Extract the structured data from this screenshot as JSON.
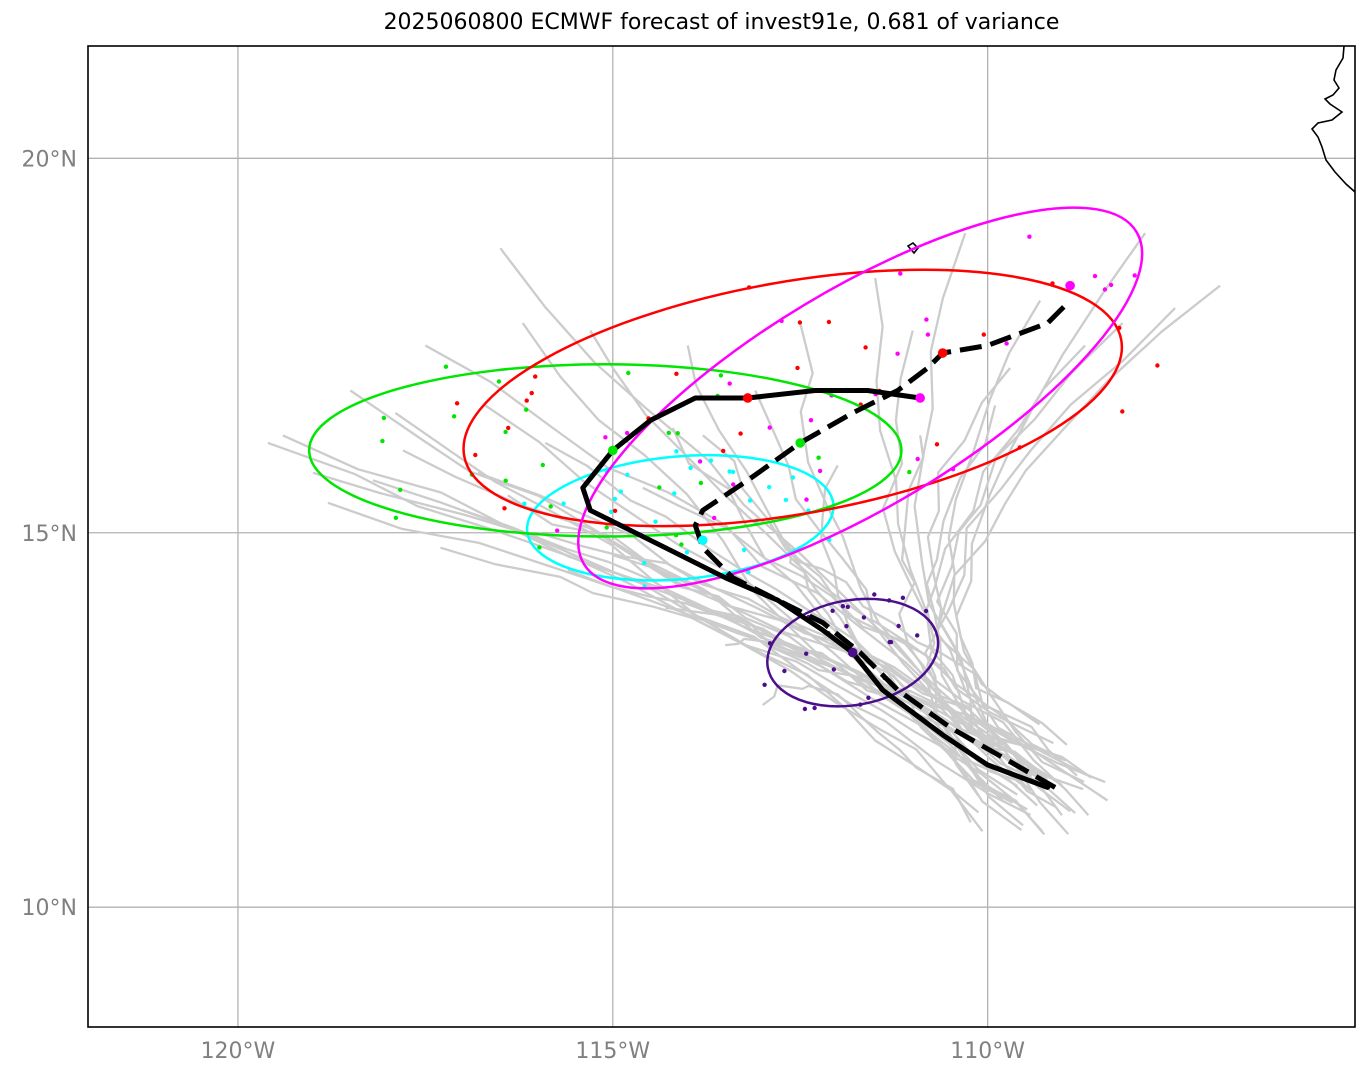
{
  "title": "2025060800 ECMWF forecast of invest91e, 0.681 of variance",
  "axes": {
    "lon_range": [
      -122.0,
      -105.1
    ],
    "lat_range": [
      8.4,
      21.5
    ],
    "lon_ticks": [
      {
        "value": -120,
        "label": "120°W"
      },
      {
        "value": -115,
        "label": "115°W"
      },
      {
        "value": -110,
        "label": "110°W"
      }
    ],
    "lat_ticks": [
      {
        "value": 20,
        "label": "20°N"
      },
      {
        "value": 15,
        "label": "15°N"
      },
      {
        "value": 10,
        "label": "10°N"
      }
    ],
    "gridlines": true
  },
  "colors": {
    "ensemble_tracks": "#cccccc",
    "clusters": [
      "#4b0f8c",
      "#00ffff",
      "#00e600",
      "#ff0000",
      "#ff00ff"
    ],
    "mean_track": "#000000",
    "coast": "#000000",
    "grid": "#b3b3b3"
  },
  "chart_data": {
    "type": "map-track-forecast",
    "title": "2025060800 ECMWF forecast of invest91e, 0.681 of variance",
    "solid_track": [
      [
        -109.2,
        11.6
      ],
      [
        -110.0,
        11.9
      ],
      [
        -110.6,
        12.3
      ],
      [
        -111.4,
        12.9
      ],
      [
        -111.8,
        13.4
      ],
      [
        -112.2,
        13.7
      ],
      [
        -112.8,
        14.1
      ],
      [
        -113.5,
        14.4
      ],
      [
        -114.3,
        14.8
      ],
      [
        -114.9,
        15.1
      ],
      [
        -115.3,
        15.3
      ],
      [
        -115.4,
        15.6
      ],
      [
        -115.0,
        16.1
      ],
      [
        -114.5,
        16.5
      ],
      [
        -113.9,
        16.8
      ],
      [
        -113.2,
        16.8
      ],
      [
        -112.3,
        16.9
      ],
      [
        -111.6,
        16.9
      ],
      [
        -110.9,
        16.8
      ]
    ],
    "dashed_track": [
      [
        -109.1,
        11.6
      ],
      [
        -109.8,
        12.0
      ],
      [
        -110.5,
        12.4
      ],
      [
        -111.2,
        12.9
      ],
      [
        -111.7,
        13.4
      ],
      [
        -112.2,
        13.8
      ],
      [
        -112.8,
        14.1
      ],
      [
        -113.4,
        14.4
      ],
      [
        -113.8,
        14.8
      ],
      [
        -113.9,
        15.1
      ],
      [
        -113.8,
        15.3
      ],
      [
        -113.2,
        15.7
      ],
      [
        -112.5,
        16.2
      ],
      [
        -111.8,
        16.6
      ],
      [
        -111.2,
        16.9
      ],
      [
        -110.8,
        17.2
      ],
      [
        -110.6,
        17.4
      ],
      [
        -110.0,
        17.5
      ],
      [
        -109.2,
        17.8
      ],
      [
        -108.9,
        18.1
      ]
    ],
    "track_markers": [
      {
        "lon": -111.8,
        "lat": 13.4,
        "color": "#4b0f8c"
      },
      {
        "lon": -113.8,
        "lat": 14.9,
        "color": "#00ffff"
      },
      {
        "lon": -115.0,
        "lat": 16.1,
        "color": "#00e600"
      },
      {
        "lon": -113.2,
        "lat": 16.8,
        "color": "#ff0000"
      },
      {
        "lon": -110.9,
        "lat": 16.8,
        "color": "#ff00ff"
      },
      {
        "lon": -112.5,
        "lat": 16.2,
        "color": "#00e600"
      },
      {
        "lon": -110.6,
        "lat": 17.4,
        "color": "#ff0000"
      },
      {
        "lon": -108.9,
        "lat": 18.3,
        "color": "#ff00ff"
      }
    ],
    "ellipses": [
      {
        "color": "#4b0f8c",
        "center": [
          -111.8,
          13.4
        ],
        "semi_lon": 1.15,
        "semi_lat": 0.7,
        "tilt_deg": 10
      },
      {
        "color": "#00ffff",
        "center": [
          -114.1,
          15.2
        ],
        "semi_lon": 2.05,
        "semi_lat": 0.82,
        "tilt_deg": 5
      },
      {
        "color": "#00e600",
        "center": [
          -115.1,
          16.1
        ],
        "semi_lon": 3.95,
        "semi_lat": 1.15,
        "tilt_deg": 0
      },
      {
        "color": "#ff0000",
        "center": [
          -112.6,
          16.8
        ],
        "semi_lon": 4.45,
        "semi_lat": 1.55,
        "tilt_deg": 10
      },
      {
        "color": "#ff00ff",
        "center": [
          -111.7,
          16.8
        ],
        "semi_lon": 4.3,
        "semi_lat": 1.45,
        "tilt_deg": 31
      }
    ]
  }
}
